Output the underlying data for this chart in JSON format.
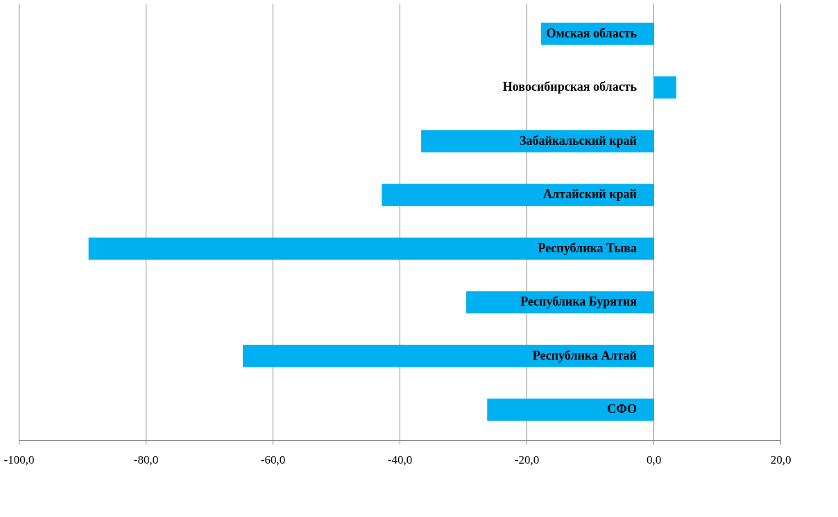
{
  "chart_data": {
    "type": "bar",
    "orientation": "horizontal",
    "categories": [
      "Омская область",
      "Новосибирская область",
      "Забайкальский край",
      "Алтайский край",
      "Республика Тыва",
      "Республика Бурятия",
      "Республика Алтай",
      "СФО"
    ],
    "values": [
      -17.7,
      3.6,
      -36.6,
      -42.8,
      -89.0,
      -29.5,
      -64.7,
      -26.2
    ],
    "color": "#00b0f0",
    "xlim": [
      -100,
      20
    ],
    "xticks": [
      {
        "value": -100,
        "label": "-100,0"
      },
      {
        "value": -80,
        "label": "-80,0"
      },
      {
        "value": -60,
        "label": "-60,0"
      },
      {
        "value": -40,
        "label": "-40,0"
      },
      {
        "value": -20,
        "label": "-20,0"
      },
      {
        "value": 0,
        "label": "0,0"
      },
      {
        "value": 20,
        "label": "20,0"
      }
    ],
    "grid": "x"
  }
}
